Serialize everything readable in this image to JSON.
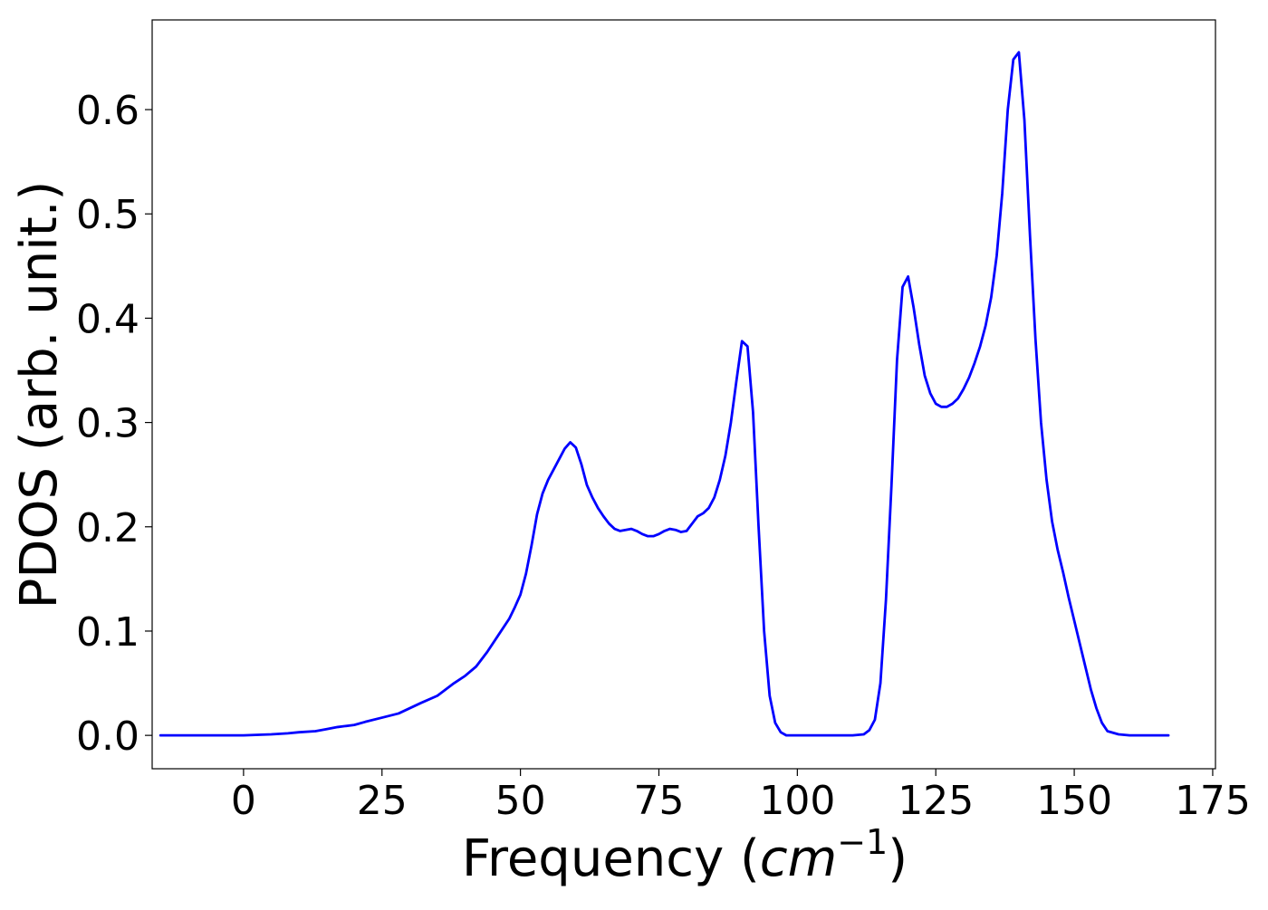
{
  "chart_data": {
    "type": "line",
    "xlabel": "Frequency (cm⁻¹)",
    "xlabel_parts": {
      "prefix": "Frequency (",
      "var": "cm",
      "sup": "−1",
      "suffix": ")"
    },
    "ylabel": "PDOS (arb. unit.)",
    "xlim": [
      -16.5,
      175.5
    ],
    "ylim": [
      -0.032,
      0.686
    ],
    "xticks": [
      0,
      25,
      50,
      75,
      100,
      125,
      150,
      175
    ],
    "xtick_labels": [
      "0",
      "25",
      "50",
      "75",
      "100",
      "125",
      "150",
      "175"
    ],
    "yticks": [
      0.0,
      0.1,
      0.2,
      0.3,
      0.4,
      0.5,
      0.6
    ],
    "ytick_labels": [
      "0.0",
      "0.1",
      "0.2",
      "0.3",
      "0.4",
      "0.5",
      "0.6"
    ],
    "grid": false,
    "series": [
      {
        "color": "#0000ff",
        "x": [
          -15,
          -10,
          -5,
          0,
          5,
          8,
          10,
          13,
          15,
          17,
          20,
          22,
          25,
          28,
          30,
          32,
          35,
          38,
          40,
          42,
          44,
          46,
          48,
          49,
          50,
          51,
          52,
          53,
          54,
          55,
          56,
          57,
          58,
          59,
          60,
          61,
          62,
          63,
          64,
          65,
          66,
          67,
          68,
          69,
          70,
          71,
          72,
          73,
          74,
          75,
          76,
          77,
          78,
          79,
          80,
          81,
          82,
          83,
          84,
          85,
          86,
          87,
          88,
          89,
          90,
          91,
          92,
          93,
          94,
          95,
          96,
          97,
          98,
          99,
          100,
          105,
          110,
          112,
          113,
          114,
          115,
          116,
          117,
          118,
          119,
          120,
          121,
          122,
          123,
          124,
          125,
          126,
          127,
          128,
          129,
          130,
          131,
          132,
          133,
          134,
          135,
          136,
          137,
          138,
          139,
          140,
          141,
          142,
          143,
          144,
          145,
          146,
          147,
          148,
          149,
          150,
          151,
          152,
          153,
          154,
          155,
          156,
          158,
          160,
          165,
          167
        ],
        "y": [
          0,
          0,
          0,
          0,
          0.001,
          0.002,
          0.003,
          0.004,
          0.006,
          0.008,
          0.01,
          0.013,
          0.017,
          0.021,
          0.026,
          0.031,
          0.038,
          0.05,
          0.057,
          0.066,
          0.08,
          0.096,
          0.112,
          0.123,
          0.135,
          0.155,
          0.182,
          0.212,
          0.232,
          0.245,
          0.255,
          0.265,
          0.275,
          0.281,
          0.276,
          0.26,
          0.24,
          0.228,
          0.218,
          0.21,
          0.203,
          0.198,
          0.196,
          0.197,
          0.198,
          0.196,
          0.193,
          0.191,
          0.191,
          0.193,
          0.196,
          0.198,
          0.197,
          0.195,
          0.196,
          0.203,
          0.21,
          0.213,
          0.218,
          0.228,
          0.245,
          0.268,
          0.3,
          0.34,
          0.378,
          0.373,
          0.31,
          0.2,
          0.1,
          0.038,
          0.012,
          0.003,
          0,
          0,
          0,
          0,
          0,
          0.001,
          0.005,
          0.015,
          0.05,
          0.13,
          0.24,
          0.36,
          0.43,
          0.44,
          0.41,
          0.375,
          0.345,
          0.328,
          0.318,
          0.315,
          0.315,
          0.318,
          0.323,
          0.332,
          0.343,
          0.357,
          0.373,
          0.393,
          0.42,
          0.46,
          0.52,
          0.6,
          0.648,
          0.655,
          0.59,
          0.48,
          0.38,
          0.3,
          0.245,
          0.205,
          0.178,
          0.156,
          0.132,
          0.11,
          0.088,
          0.066,
          0.044,
          0.026,
          0.012,
          0.004,
          0.001,
          0,
          0,
          0
        ]
      }
    ]
  }
}
